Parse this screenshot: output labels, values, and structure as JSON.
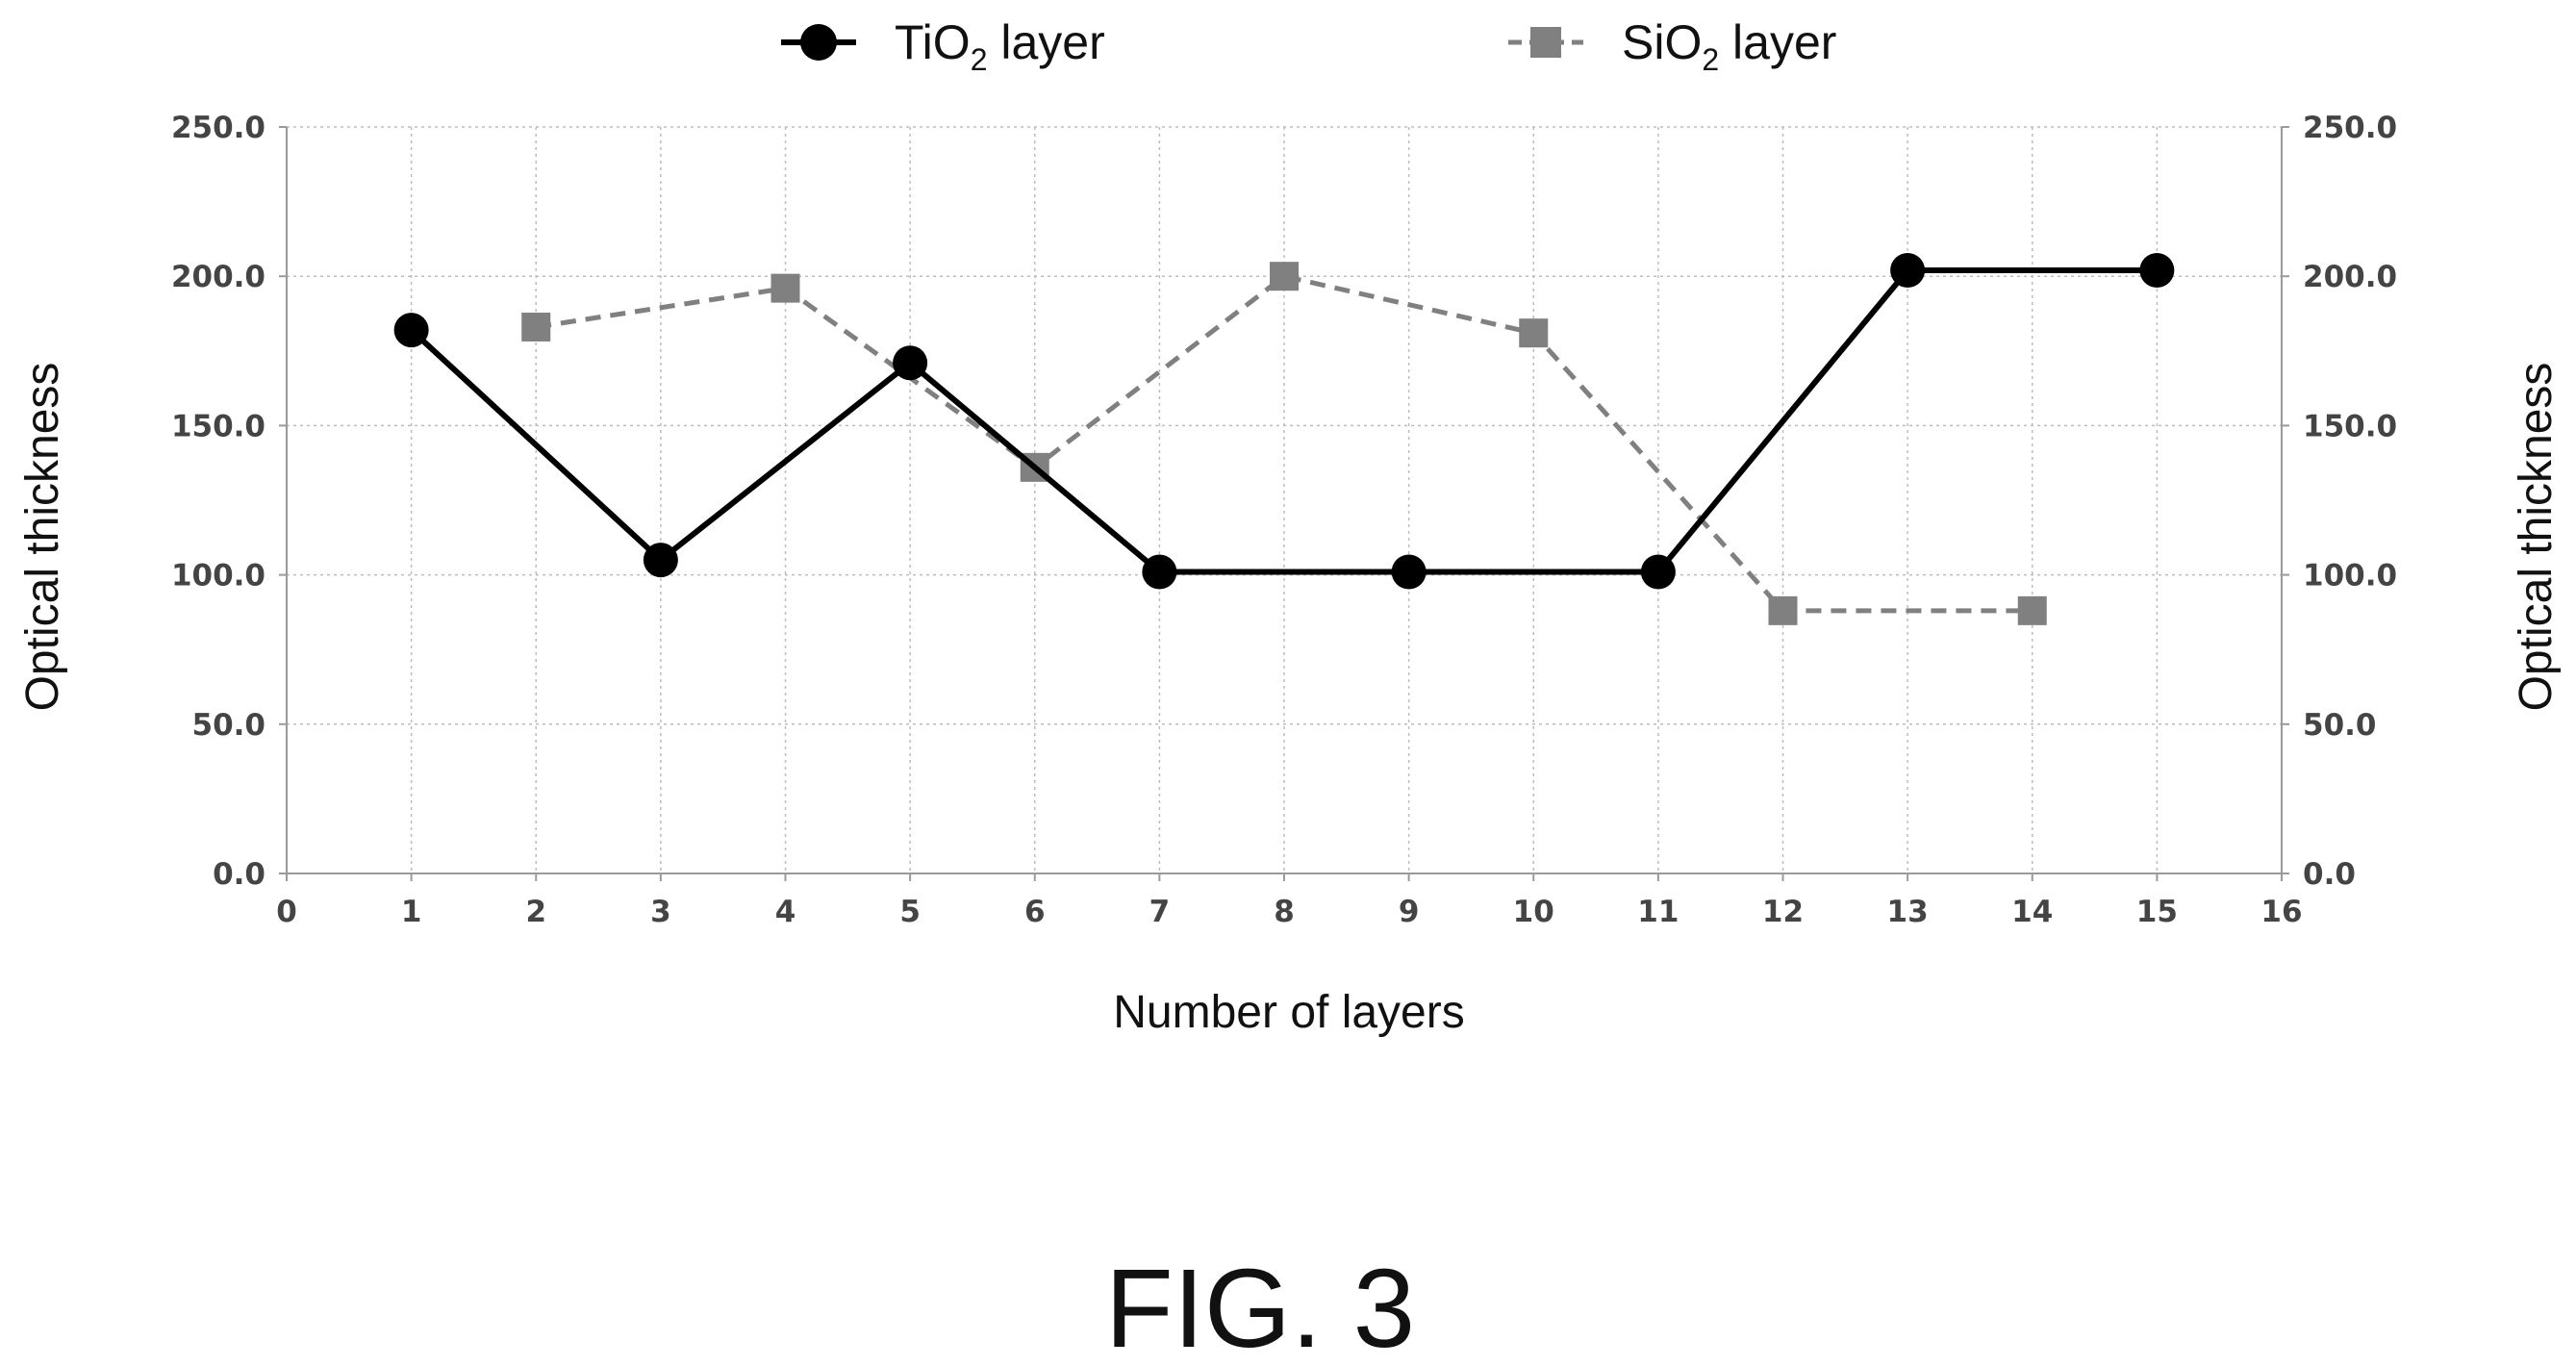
{
  "chart_data": {
    "type": "line",
    "title": "",
    "xlabel": "Number of layers",
    "ylabel": "Optical thickness",
    "ylabel_right": "Optical thickness",
    "xlim": [
      0,
      16
    ],
    "ylim": [
      0,
      250
    ],
    "x_ticks": [
      "0",
      "1",
      "2",
      "3",
      "4",
      "5",
      "6",
      "7",
      "8",
      "9",
      "10",
      "11",
      "12",
      "13",
      "14",
      "15",
      "16"
    ],
    "y_ticks": [
      "0.0",
      "50.0",
      "100.0",
      "150.0",
      "200.0",
      "250.0"
    ],
    "grid": true,
    "legend_position": "top",
    "series": [
      {
        "name": "TiO2 layer",
        "name_base": "TiO",
        "name_sub": "2",
        "name_suffix": " layer",
        "color": "#000000",
        "marker": "circle",
        "line_style": "solid",
        "x": [
          1,
          3,
          5,
          7,
          9,
          11,
          13,
          15
        ],
        "y": [
          182,
          105,
          171,
          101,
          101,
          101,
          202,
          202
        ]
      },
      {
        "name": "SiO2 layer",
        "name_base": "SiO",
        "name_sub": "2",
        "name_suffix": " layer",
        "color": "#808080",
        "marker": "square",
        "line_style": "dashed",
        "x": [
          2,
          4,
          6,
          8,
          10,
          12,
          14
        ],
        "y": [
          183,
          196,
          136,
          200,
          181,
          88,
          88
        ]
      }
    ]
  },
  "caption": "FIG. 3"
}
